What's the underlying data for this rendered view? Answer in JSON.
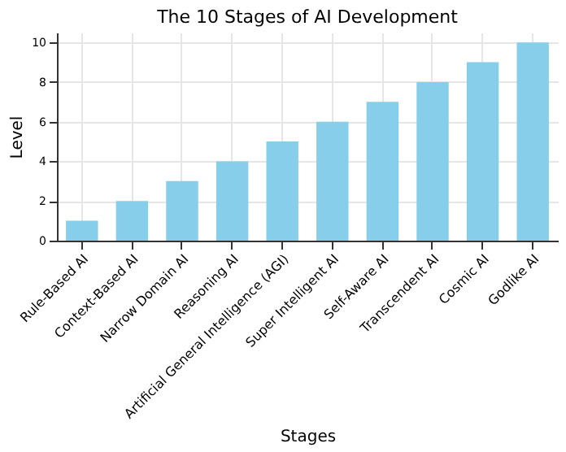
{
  "chart_data": {
    "type": "bar",
    "title": "The 10 Stages of AI Development",
    "xlabel": "Stages",
    "ylabel": "Level",
    "categories": [
      "Rule-Based AI",
      "Context-Based AI",
      "Narrow Domain AI",
      "Reasoning AI",
      "Artificial General Intelligence (AGI)",
      "Super Intelligent AI",
      "Self-Aware AI",
      "Transcendent AI",
      "Cosmic AI",
      "Godlike AI"
    ],
    "values": [
      1,
      2,
      3,
      4,
      5,
      6,
      7,
      8,
      9,
      10
    ],
    "color": "#87ceeb",
    "ylim": [
      0,
      10.5
    ],
    "yticks": [
      0,
      2,
      4,
      6,
      8,
      10
    ],
    "grid": true
  }
}
